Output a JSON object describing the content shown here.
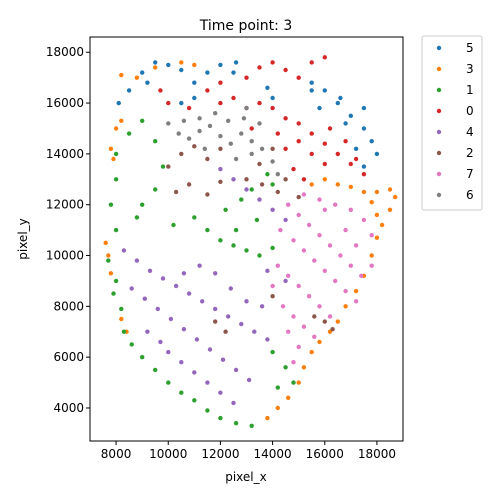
{
  "chart_data": {
    "type": "scatter",
    "title": "Time point: 3",
    "xlabel": "pixel_x",
    "ylabel": "pixel_y",
    "xlim": [
      7000,
      19000
    ],
    "ylim": [
      2700,
      18600
    ],
    "xticks": [
      8000,
      10000,
      12000,
      14000,
      16000,
      18000
    ],
    "yticks": [
      4000,
      6000,
      8000,
      10000,
      12000,
      14000,
      16000,
      18000
    ],
    "grid": false,
    "legend_position": "outside-top-right",
    "series": [
      {
        "name": "5",
        "color": "#1f77b4",
        "points": [
          [
            8100,
            16000
          ],
          [
            8500,
            16500
          ],
          [
            9000,
            17200
          ],
          [
            9500,
            17600
          ],
          [
            9200,
            16800
          ],
          [
            10000,
            17500
          ],
          [
            10500,
            17300
          ],
          [
            11000,
            16800
          ],
          [
            11500,
            17200
          ],
          [
            12000,
            17500
          ],
          [
            12500,
            17200
          ],
          [
            12600,
            17600
          ],
          [
            11000,
            16200
          ],
          [
            10500,
            16000
          ],
          [
            13800,
            16600
          ],
          [
            14000,
            16200
          ],
          [
            15500,
            16800
          ],
          [
            16000,
            16500
          ],
          [
            16500,
            16000
          ],
          [
            17000,
            15500
          ],
          [
            17500,
            15000
          ],
          [
            17800,
            14500
          ],
          [
            18000,
            14000
          ],
          [
            17500,
            13500
          ],
          [
            16600,
            16200
          ],
          [
            15800,
            15800
          ],
          [
            16800,
            15200
          ],
          [
            17200,
            14200
          ],
          [
            15500,
            16500
          ],
          [
            17500,
            15800
          ]
        ]
      },
      {
        "name": "3",
        "color": "#ff7f0e",
        "points": [
          [
            8200,
            17100
          ],
          [
            8800,
            17000
          ],
          [
            9500,
            17400
          ],
          [
            10500,
            17600
          ],
          [
            11000,
            17500
          ],
          [
            8200,
            15300
          ],
          [
            8000,
            15000
          ],
          [
            7800,
            14200
          ],
          [
            7900,
            13800
          ],
          [
            7600,
            10500
          ],
          [
            7700,
            10000
          ],
          [
            7800,
            9300
          ],
          [
            8200,
            7500
          ],
          [
            8400,
            7000
          ],
          [
            15500,
            12800
          ],
          [
            16000,
            13000
          ],
          [
            16500,
            12800
          ],
          [
            17000,
            12700
          ],
          [
            17500,
            12500
          ],
          [
            18000,
            12500
          ],
          [
            18500,
            12600
          ],
          [
            18700,
            12300
          ],
          [
            18500,
            11800
          ],
          [
            18200,
            11200
          ],
          [
            18000,
            10700
          ],
          [
            17800,
            10000
          ],
          [
            17500,
            9200
          ],
          [
            17200,
            8600
          ],
          [
            16800,
            8000
          ],
          [
            16500,
            7400
          ],
          [
            16200,
            7000
          ],
          [
            15800,
            6600
          ],
          [
            15500,
            6200
          ],
          [
            15200,
            5600
          ],
          [
            15000,
            5000
          ],
          [
            14600,
            4400
          ],
          [
            14200,
            4000
          ],
          [
            13800,
            3600
          ],
          [
            18000,
            11600
          ],
          [
            17800,
            12100
          ]
        ]
      },
      {
        "name": "1",
        "color": "#2ca02c",
        "points": [
          [
            8000,
            14000
          ],
          [
            8500,
            14800
          ],
          [
            9000,
            15300
          ],
          [
            9500,
            14500
          ],
          [
            9800,
            13500
          ],
          [
            8000,
            13000
          ],
          [
            7800,
            12000
          ],
          [
            8000,
            11000
          ],
          [
            7700,
            9800
          ],
          [
            8000,
            9000
          ],
          [
            7900,
            8500
          ],
          [
            8200,
            7900
          ],
          [
            8300,
            7000
          ],
          [
            8600,
            6500
          ],
          [
            9000,
            6000
          ],
          [
            9500,
            5500
          ],
          [
            10000,
            5000
          ],
          [
            10500,
            4600
          ],
          [
            11000,
            4300
          ],
          [
            11500,
            3900
          ],
          [
            12000,
            3600
          ],
          [
            12600,
            3400
          ],
          [
            13200,
            3300
          ],
          [
            10200,
            11200
          ],
          [
            11000,
            11500
          ],
          [
            11500,
            11000
          ],
          [
            12000,
            10600
          ],
          [
            12500,
            10400
          ],
          [
            13000,
            10200
          ],
          [
            13500,
            10000
          ],
          [
            14000,
            10300
          ],
          [
            12200,
            11800
          ],
          [
            12800,
            12200
          ],
          [
            13200,
            12600
          ],
          [
            14000,
            12800
          ],
          [
            13800,
            13200
          ],
          [
            9000,
            12000
          ],
          [
            9500,
            12600
          ],
          [
            8800,
            11500
          ],
          [
            14000,
            6200
          ],
          [
            14500,
            5600
          ],
          [
            14800,
            5000
          ],
          [
            14200,
            4800
          ],
          [
            13400,
            11400
          ],
          [
            12600,
            11000
          ]
        ]
      },
      {
        "name": "0",
        "color": "#d62728",
        "points": [
          [
            9700,
            16500
          ],
          [
            10000,
            16000
          ],
          [
            11500,
            16500
          ],
          [
            12000,
            16800
          ],
          [
            13000,
            17000
          ],
          [
            13500,
            17400
          ],
          [
            14000,
            17600
          ],
          [
            14500,
            17300
          ],
          [
            15000,
            17000
          ],
          [
            15500,
            17600
          ],
          [
            16000,
            17800
          ],
          [
            12500,
            16200
          ],
          [
            13000,
            15800
          ],
          [
            14000,
            15800
          ],
          [
            14500,
            15400
          ],
          [
            15000,
            15200
          ],
          [
            15500,
            14800
          ],
          [
            16000,
            14400
          ],
          [
            16500,
            14000
          ],
          [
            17000,
            13600
          ],
          [
            17500,
            13200
          ],
          [
            15000,
            14500
          ],
          [
            15500,
            14000
          ],
          [
            16000,
            13600
          ],
          [
            14500,
            14200
          ],
          [
            14800,
            13400
          ],
          [
            15200,
            13000
          ],
          [
            13500,
            16000
          ],
          [
            12000,
            16000
          ],
          [
            10800,
            15800
          ],
          [
            13200,
            15000
          ],
          [
            14200,
            14800
          ],
          [
            16200,
            15000
          ],
          [
            16800,
            14500
          ],
          [
            17200,
            13800
          ]
        ]
      },
      {
        "name": "4",
        "color": "#9467bd",
        "points": [
          [
            8300,
            10200
          ],
          [
            8800,
            9800
          ],
          [
            9300,
            9400
          ],
          [
            9800,
            9100
          ],
          [
            10300,
            8800
          ],
          [
            10800,
            8500
          ],
          [
            11300,
            8200
          ],
          [
            11800,
            7900
          ],
          [
            12300,
            7600
          ],
          [
            12800,
            7300
          ],
          [
            13300,
            7000
          ],
          [
            13800,
            6700
          ],
          [
            8600,
            8700
          ],
          [
            9100,
            8300
          ],
          [
            9600,
            7900
          ],
          [
            10100,
            7500
          ],
          [
            10600,
            7100
          ],
          [
            11100,
            6700
          ],
          [
            11600,
            6300
          ],
          [
            12100,
            5900
          ],
          [
            12600,
            5500
          ],
          [
            13100,
            5100
          ],
          [
            10000,
            6200
          ],
          [
            10500,
            5800
          ],
          [
            11000,
            5400
          ],
          [
            11500,
            5000
          ],
          [
            12000,
            4600
          ],
          [
            12500,
            4200
          ],
          [
            9200,
            7000
          ],
          [
            9700,
            6600
          ],
          [
            12000,
            13400
          ],
          [
            12500,
            13000
          ],
          [
            13000,
            12600
          ],
          [
            13500,
            12200
          ],
          [
            14000,
            11800
          ],
          [
            14500,
            11400
          ],
          [
            10600,
            9300
          ],
          [
            11200,
            9600
          ],
          [
            11800,
            9300
          ],
          [
            12400,
            8700
          ],
          [
            13000,
            8200
          ],
          [
            13600,
            8000
          ],
          [
            13800,
            9400
          ],
          [
            14500,
            9000
          ]
        ]
      },
      {
        "name": "2",
        "color": "#8c564b",
        "points": [
          [
            10000,
            13500
          ],
          [
            10500,
            14000
          ],
          [
            11000,
            14300
          ],
          [
            11500,
            13800
          ],
          [
            12000,
            14200
          ],
          [
            13000,
            13000
          ],
          [
            13500,
            13600
          ],
          [
            14000,
            14200
          ],
          [
            14500,
            13000
          ],
          [
            15000,
            12300
          ],
          [
            14200,
            12500
          ],
          [
            13600,
            12800
          ],
          [
            10300,
            12500
          ],
          [
            10800,
            12800
          ],
          [
            11500,
            12400
          ],
          [
            12000,
            12900
          ],
          [
            11800,
            7400
          ],
          [
            12200,
            7000
          ],
          [
            14000,
            8400
          ],
          [
            16000,
            7400
          ],
          [
            15600,
            7600
          ],
          [
            16300,
            7100
          ]
        ]
      },
      {
        "name": "7",
        "color": "#e377c2",
        "points": [
          [
            14300,
            11000
          ],
          [
            14800,
            10600
          ],
          [
            15200,
            10200
          ],
          [
            15600,
            9800
          ],
          [
            16000,
            9400
          ],
          [
            16400,
            9000
          ],
          [
            16800,
            8600
          ],
          [
            17200,
            8200
          ],
          [
            14600,
            12000
          ],
          [
            15000,
            11600
          ],
          [
            15400,
            11200
          ],
          [
            15800,
            10800
          ],
          [
            16200,
            10400
          ],
          [
            16600,
            10000
          ],
          [
            17000,
            9600
          ],
          [
            17400,
            9200
          ],
          [
            17800,
            9600
          ],
          [
            15200,
            12400
          ],
          [
            15800,
            12200
          ],
          [
            16400,
            12000
          ],
          [
            17000,
            11800
          ],
          [
            17500,
            11400
          ],
          [
            17800,
            10800
          ],
          [
            14200,
            9600
          ],
          [
            14600,
            9200
          ],
          [
            15000,
            8800
          ],
          [
            15400,
            8400
          ],
          [
            15800,
            8000
          ],
          [
            16200,
            7600
          ],
          [
            14000,
            8800
          ],
          [
            14400,
            8000
          ],
          [
            14800,
            7600
          ],
          [
            15200,
            7200
          ],
          [
            15600,
            6800
          ],
          [
            14600,
            7000
          ],
          [
            15000,
            6400
          ],
          [
            14800,
            5800
          ],
          [
            16800,
            11000
          ],
          [
            17200,
            10400
          ],
          [
            16000,
            11800
          ]
        ]
      },
      {
        "name": "6",
        "color": "#7f7f7f",
        "points": [
          [
            10000,
            15200
          ],
          [
            10400,
            14800
          ],
          [
            10800,
            14600
          ],
          [
            11200,
            14900
          ],
          [
            11600,
            15100
          ],
          [
            12000,
            14700
          ],
          [
            12400,
            14400
          ],
          [
            12800,
            14800
          ],
          [
            13200,
            14500
          ],
          [
            13600,
            14200
          ],
          [
            14000,
            13700
          ],
          [
            10600,
            15300
          ],
          [
            11200,
            15400
          ],
          [
            12300,
            15300
          ],
          [
            12900,
            15400
          ],
          [
            13500,
            15200
          ],
          [
            11400,
            14200
          ],
          [
            12600,
            13800
          ],
          [
            13200,
            14000
          ],
          [
            14200,
            13200
          ],
          [
            11800,
            15600
          ],
          [
            13000,
            15800
          ]
        ]
      }
    ]
  }
}
